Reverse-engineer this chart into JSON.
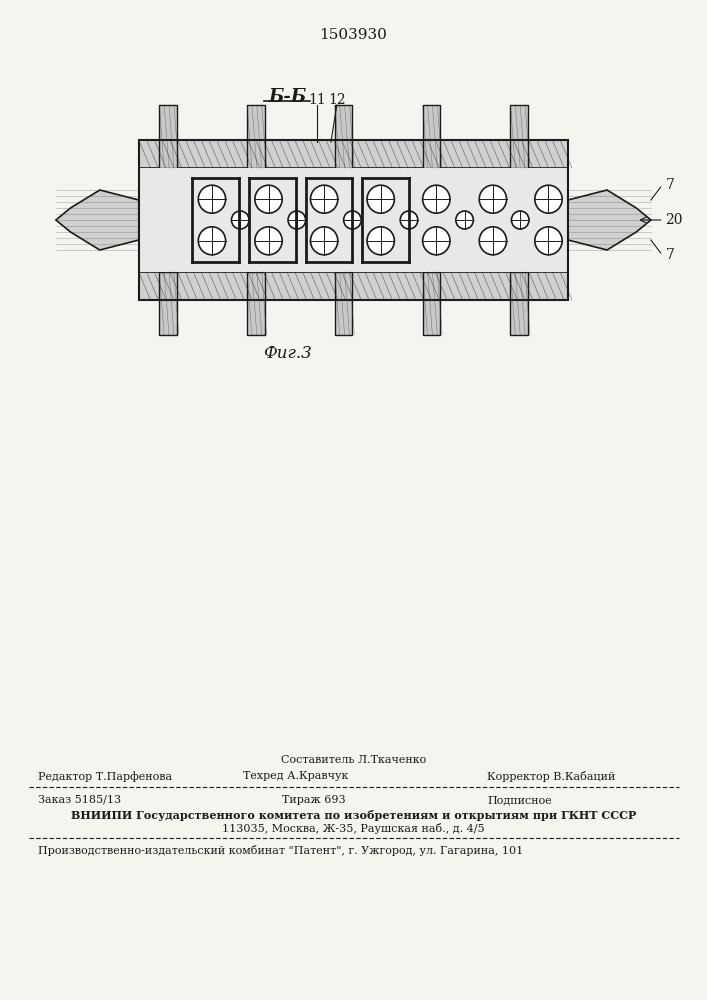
{
  "patent_number": "1503930",
  "section_label": "Б-Б",
  "fig_label": "Фиг.3",
  "editor_line": "Редактор Т.Парфенова",
  "composer_line": "Составитель Л.Ткаченко",
  "techred_line": "Техред А.Кравчук",
  "corrector_line": "Корректор В.Кабаций",
  "order_line": "Заказ 5185/13",
  "tirazh_line": "Тираж 693",
  "podpisnoe_line": "Подписное",
  "vniiipi_line": "ВНИИПИ Государственного комитета по изобретениям и открытиям при ГКНТ СССР",
  "address_line": "113035, Москва, Ж-35, Раушская наб., д. 4/5",
  "kombinat_line": "Производственно-издательский комбинат \"Патент\", г. Ужгород, ул. Гагарина, 101",
  "bg_color": "#f5f5f0",
  "label_7_right_top": "7",
  "label_7_right_bot": "7",
  "label_20": "20",
  "label_11": "11",
  "label_12": "12"
}
